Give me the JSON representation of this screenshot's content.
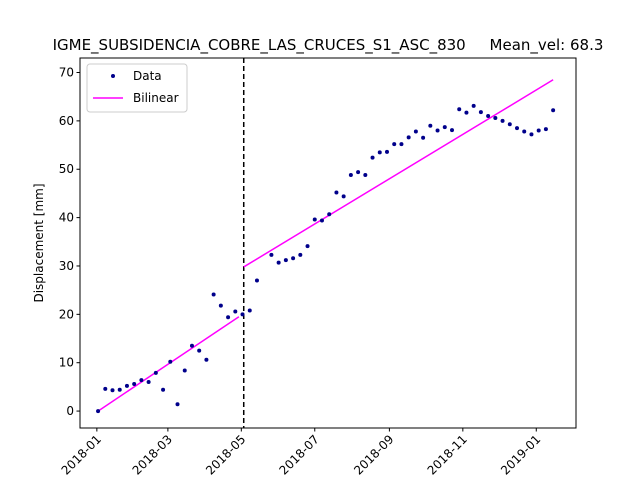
{
  "chart_data": {
    "type": "scatter",
    "title": "IGME_SUBSIDENCIA_COBRE_LAS_CRUCES_S1_ASC_830     Mean_vel: 68.3",
    "xlabel": "",
    "ylabel": "Displacement [mm]",
    "xlim": [
      "2017-12-18",
      "2019-02-03"
    ],
    "ylim": [
      -3.5,
      73
    ],
    "x_ticks": [
      "2018-01",
      "2018-03",
      "2018-05",
      "2018-07",
      "2018-09",
      "2018-11",
      "2019-01"
    ],
    "y_ticks": [
      0,
      10,
      20,
      30,
      40,
      50,
      60,
      70
    ],
    "legend": {
      "position": "upper-left",
      "entries": [
        "Data",
        "Bilinear"
      ]
    },
    "grid": false,
    "breakpoint": "2018-05-03",
    "colors": {
      "data": "#00008B",
      "fit": "#FF00FF",
      "breakpoint": "#000000"
    },
    "series": [
      {
        "name": "Data",
        "style": "markers",
        "points": [
          [
            "2018-01-02",
            0.0
          ],
          [
            "2018-01-08",
            4.6
          ],
          [
            "2018-01-14",
            4.3
          ],
          [
            "2018-01-20",
            4.4
          ],
          [
            "2018-01-26",
            5.2
          ],
          [
            "2018-02-01",
            5.6
          ],
          [
            "2018-02-07",
            6.4
          ],
          [
            "2018-02-13",
            6.0
          ],
          [
            "2018-02-19",
            7.9
          ],
          [
            "2018-02-25",
            4.4
          ],
          [
            "2018-03-03",
            10.2
          ],
          [
            "2018-03-09",
            1.4
          ],
          [
            "2018-03-15",
            8.4
          ],
          [
            "2018-03-21",
            13.5
          ],
          [
            "2018-03-27",
            12.5
          ],
          [
            "2018-04-02",
            10.6
          ],
          [
            "2018-04-08",
            24.1
          ],
          [
            "2018-04-14",
            21.8
          ],
          [
            "2018-04-20",
            19.4
          ],
          [
            "2018-04-26",
            20.6
          ],
          [
            "2018-05-02",
            20.0
          ],
          [
            "2018-05-08",
            20.8
          ],
          [
            "2018-05-14",
            27.0
          ],
          [
            "2018-05-26",
            32.3
          ],
          [
            "2018-06-01",
            30.7
          ],
          [
            "2018-06-07",
            31.2
          ],
          [
            "2018-06-13",
            31.6
          ],
          [
            "2018-06-19",
            32.3
          ],
          [
            "2018-06-25",
            34.1
          ],
          [
            "2018-07-01",
            39.6
          ],
          [
            "2018-07-07",
            39.4
          ],
          [
            "2018-07-13",
            40.7
          ],
          [
            "2018-07-19",
            45.2
          ],
          [
            "2018-07-25",
            44.4
          ],
          [
            "2018-07-31",
            48.8
          ],
          [
            "2018-08-06",
            49.4
          ],
          [
            "2018-08-12",
            48.8
          ],
          [
            "2018-08-18",
            52.4
          ],
          [
            "2018-08-24",
            53.5
          ],
          [
            "2018-08-30",
            53.6
          ],
          [
            "2018-09-05",
            55.2
          ],
          [
            "2018-09-11",
            55.2
          ],
          [
            "2018-09-17",
            56.6
          ],
          [
            "2018-09-23",
            57.8
          ],
          [
            "2018-09-29",
            56.5
          ],
          [
            "2018-10-05",
            59.0
          ],
          [
            "2018-10-11",
            58.0
          ],
          [
            "2018-10-17",
            58.7
          ],
          [
            "2018-10-23",
            58.1
          ],
          [
            "2018-10-29",
            62.4
          ],
          [
            "2018-11-04",
            61.7
          ],
          [
            "2018-11-10",
            63.1
          ],
          [
            "2018-11-16",
            61.8
          ],
          [
            "2018-11-22",
            61.0
          ],
          [
            "2018-11-28",
            60.6
          ],
          [
            "2018-12-04",
            60.0
          ],
          [
            "2018-12-10",
            59.3
          ],
          [
            "2018-12-16",
            58.5
          ],
          [
            "2018-12-22",
            57.8
          ],
          [
            "2018-12-28",
            57.2
          ],
          [
            "2019-01-03",
            58.0
          ],
          [
            "2019-01-09",
            58.3
          ],
          [
            "2019-01-15",
            62.2
          ]
        ]
      },
      {
        "name": "Bilinear",
        "style": "line",
        "segments": [
          [
            [
              "2018-01-02",
              0.0
            ],
            [
              "2018-04-29",
              19.5
            ]
          ],
          [
            [
              "2018-05-03",
              29.8
            ],
            [
              "2019-01-15",
              68.5
            ]
          ]
        ]
      }
    ]
  }
}
